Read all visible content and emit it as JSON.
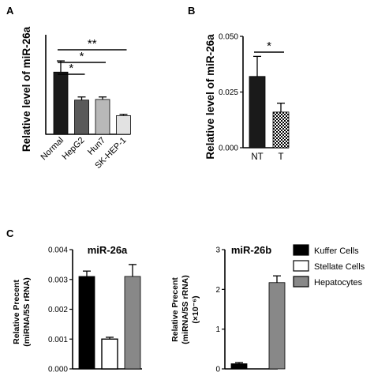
{
  "panels": {
    "A": "A",
    "B": "B",
    "C": "C"
  },
  "chart_data": [
    {
      "id": "A",
      "type": "bar",
      "ylabel": "Relative level of miR-26a",
      "categories": [
        "Normal",
        "HepG2",
        "Hun7",
        "SK-HEP-1"
      ],
      "values": [
        1.0,
        0.55,
        0.56,
        0.3
      ],
      "errors": [
        0.18,
        0.05,
        0.04,
        0.02
      ],
      "colors": [
        "#1a1a1a",
        "#5a5a5a",
        "#b8b8b8",
        "#e2e2e2"
      ],
      "ylim": [
        0,
        1.6
      ],
      "significance": [
        {
          "from": 0,
          "to": 1,
          "label": "*"
        },
        {
          "from": 0,
          "to": 2,
          "label": "*"
        },
        {
          "from": 0,
          "to": 3,
          "label": "**"
        }
      ]
    },
    {
      "id": "B",
      "type": "bar",
      "ylabel": "Relative level of miR-26a",
      "categories": [
        "NT",
        "T"
      ],
      "values": [
        0.032,
        0.016
      ],
      "errors": [
        0.009,
        0.004
      ],
      "colors": [
        "#1a1a1a",
        "pattern-checker"
      ],
      "ylim": [
        0,
        0.05
      ],
      "yticks": [
        "0.000",
        "0.025",
        "0.050"
      ],
      "significance": [
        {
          "from": 0,
          "to": 1,
          "label": "*"
        }
      ]
    },
    {
      "id": "C1",
      "type": "bar",
      "title": "miR-26a",
      "ylabel_lines": [
        "Relative Precent",
        "(miRNA/5S rRNA)"
      ],
      "categories": [
        "Kuffer Cells",
        "Stellate Cells",
        "Hepatocytes"
      ],
      "values": [
        0.0031,
        0.001,
        0.0031
      ],
      "errors": [
        0.00018,
        6e-05,
        0.0004
      ],
      "colors": [
        "#000000",
        "#ffffff",
        "#888888"
      ],
      "ylim": [
        0,
        0.004
      ],
      "yticks": [
        "0.000",
        "0.001",
        "0.002",
        "0.003",
        "0.004"
      ]
    },
    {
      "id": "C2",
      "type": "bar",
      "title": "miR-26b",
      "ylabel_lines": [
        "Relative Precent",
        "(miRNA/5S rRNA)",
        "(×10⁻⁶)"
      ],
      "categories": [
        "Kuffer Cells",
        "Stellate Cells",
        "Hepatocytes"
      ],
      "values": [
        0.13,
        0.0,
        2.17
      ],
      "errors": [
        0.03,
        0.0,
        0.17
      ],
      "colors": [
        "#000000",
        "#ffffff",
        "#888888"
      ],
      "ylim": [
        0,
        3
      ],
      "yticks": [
        "0",
        "1",
        "2",
        "3"
      ]
    }
  ],
  "legend": [
    {
      "label": "Kuffer Cells",
      "color": "#000000"
    },
    {
      "label": "Stellate Cells",
      "color": "#ffffff"
    },
    {
      "label": "Hepatocytes",
      "color": "#888888"
    }
  ]
}
